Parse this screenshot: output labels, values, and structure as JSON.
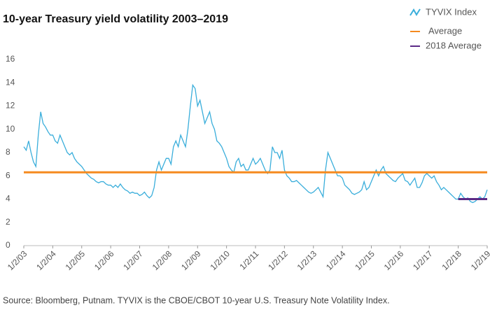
{
  "chart_data": {
    "type": "line",
    "title": "10-year Treasury yield volatility 2003–2019",
    "source": "Source: Bloomberg, Putnam. TYVIX is the CBOE/CBOT 10-year U.S. Treasury Note Volatility Index.",
    "xlim": [
      "2003-01",
      "2019-01"
    ],
    "xticks": [
      {
        "value": "2003-01",
        "label": "1/2/03"
      },
      {
        "value": "2004-01",
        "label": "1/2/04"
      },
      {
        "value": "2005-01",
        "label": "1/2/05"
      },
      {
        "value": "2006-01",
        "label": "1/2/06"
      },
      {
        "value": "2007-01",
        "label": "1/2/07"
      },
      {
        "value": "2008-01",
        "label": "1/2/08"
      },
      {
        "value": "2009-01",
        "label": "1/2/09"
      },
      {
        "value": "2010-01",
        "label": "1/2/10"
      },
      {
        "value": "2011-01",
        "label": "1/2/11"
      },
      {
        "value": "2012-01",
        "label": "1/2/12"
      },
      {
        "value": "2013-01",
        "label": "1/2/13"
      },
      {
        "value": "2014-01",
        "label": "1/2/14"
      },
      {
        "value": "2015-01",
        "label": "1/2/15"
      },
      {
        "value": "2016-01",
        "label": "1/2/16"
      },
      {
        "value": "2017-01",
        "label": "1/2/17"
      },
      {
        "value": "2018-01",
        "label": "1/2/18"
      },
      {
        "value": "2019-01",
        "label": "1/2/19"
      }
    ],
    "ylim": [
      0,
      16
    ],
    "yticks": [
      0,
      2,
      4,
      6,
      8,
      10,
      12,
      14,
      16
    ],
    "grid": false,
    "legend": "top-right",
    "series": [
      {
        "name": "TYVIX Index",
        "color": "#3aaedb",
        "x": [
          "2003-01",
          "2003-02",
          "2003-03",
          "2003-04",
          "2003-05",
          "2003-06",
          "2003-07",
          "2003-08",
          "2003-09",
          "2003-10",
          "2003-11",
          "2003-12",
          "2004-01",
          "2004-02",
          "2004-03",
          "2004-04",
          "2004-05",
          "2004-06",
          "2004-07",
          "2004-08",
          "2004-09",
          "2004-10",
          "2004-11",
          "2004-12",
          "2005-01",
          "2005-02",
          "2005-03",
          "2005-04",
          "2005-05",
          "2005-06",
          "2005-07",
          "2005-08",
          "2005-09",
          "2005-10",
          "2005-11",
          "2005-12",
          "2006-01",
          "2006-02",
          "2006-03",
          "2006-04",
          "2006-05",
          "2006-06",
          "2006-07",
          "2006-08",
          "2006-09",
          "2006-10",
          "2006-11",
          "2006-12",
          "2007-01",
          "2007-02",
          "2007-03",
          "2007-04",
          "2007-05",
          "2007-06",
          "2007-07",
          "2007-08",
          "2007-09",
          "2007-10",
          "2007-11",
          "2007-12",
          "2008-01",
          "2008-02",
          "2008-03",
          "2008-04",
          "2008-05",
          "2008-06",
          "2008-07",
          "2008-08",
          "2008-09",
          "2008-10",
          "2008-11",
          "2008-12",
          "2009-01",
          "2009-02",
          "2009-03",
          "2009-04",
          "2009-05",
          "2009-06",
          "2009-07",
          "2009-08",
          "2009-09",
          "2009-10",
          "2009-11",
          "2009-12",
          "2010-01",
          "2010-02",
          "2010-03",
          "2010-04",
          "2010-05",
          "2010-06",
          "2010-07",
          "2010-08",
          "2010-09",
          "2010-10",
          "2010-11",
          "2010-12",
          "2011-01",
          "2011-02",
          "2011-03",
          "2011-04",
          "2011-05",
          "2011-06",
          "2011-07",
          "2011-08",
          "2011-09",
          "2011-10",
          "2011-11",
          "2011-12",
          "2012-01",
          "2012-02",
          "2012-03",
          "2012-04",
          "2012-05",
          "2012-06",
          "2012-07",
          "2012-08",
          "2012-09",
          "2012-10",
          "2012-11",
          "2012-12",
          "2013-01",
          "2013-02",
          "2013-03",
          "2013-04",
          "2013-05",
          "2013-06",
          "2013-07",
          "2013-08",
          "2013-09",
          "2013-10",
          "2013-11",
          "2013-12",
          "2014-01",
          "2014-02",
          "2014-03",
          "2014-04",
          "2014-05",
          "2014-06",
          "2014-07",
          "2014-08",
          "2014-09",
          "2014-10",
          "2014-11",
          "2014-12",
          "2015-01",
          "2015-02",
          "2015-03",
          "2015-04",
          "2015-05",
          "2015-06",
          "2015-07",
          "2015-08",
          "2015-09",
          "2015-10",
          "2015-11",
          "2015-12",
          "2016-01",
          "2016-02",
          "2016-03",
          "2016-04",
          "2016-05",
          "2016-06",
          "2016-07",
          "2016-08",
          "2016-09",
          "2016-10",
          "2016-11",
          "2016-12",
          "2017-01",
          "2017-02",
          "2017-03",
          "2017-04",
          "2017-05",
          "2017-06",
          "2017-07",
          "2017-08",
          "2017-09",
          "2017-10",
          "2017-11",
          "2017-12",
          "2018-01",
          "2018-02",
          "2018-03",
          "2018-04",
          "2018-05",
          "2018-06",
          "2018-07",
          "2018-08",
          "2018-09",
          "2018-10",
          "2018-11",
          "2018-12",
          "2019-01"
        ],
        "values": [
          8.5,
          8.2,
          9.0,
          8.0,
          7.2,
          6.8,
          9.5,
          11.5,
          10.5,
          10.2,
          9.8,
          9.5,
          9.5,
          9.0,
          8.8,
          9.5,
          9.0,
          8.5,
          8.0,
          7.8,
          8.0,
          7.5,
          7.2,
          7.0,
          6.8,
          6.5,
          6.2,
          6.0,
          5.8,
          5.7,
          5.5,
          5.4,
          5.5,
          5.5,
          5.3,
          5.2,
          5.2,
          5.0,
          5.2,
          5.0,
          5.3,
          5.0,
          4.8,
          4.7,
          4.5,
          4.6,
          4.5,
          4.5,
          4.3,
          4.4,
          4.6,
          4.3,
          4.1,
          4.3,
          5.0,
          6.5,
          7.2,
          6.5,
          7.0,
          7.5,
          7.5,
          7.0,
          8.5,
          9.0,
          8.5,
          9.5,
          9.0,
          8.5,
          10.0,
          12.0,
          13.8,
          13.5,
          12.0,
          12.5,
          11.5,
          10.5,
          11.0,
          11.5,
          10.5,
          10.0,
          9.0,
          8.8,
          8.5,
          8.0,
          7.5,
          6.8,
          6.5,
          6.3,
          7.2,
          7.5,
          6.8,
          7.0,
          6.5,
          6.5,
          7.0,
          7.5,
          7.0,
          7.2,
          7.5,
          7.0,
          6.5,
          6.2,
          6.5,
          8.5,
          8.0,
          8.0,
          7.5,
          8.2,
          6.5,
          6.0,
          5.8,
          5.5,
          5.5,
          5.6,
          5.4,
          5.2,
          5.0,
          4.8,
          4.6,
          4.5,
          4.6,
          4.8,
          5.0,
          4.6,
          4.2,
          6.5,
          8.0,
          7.5,
          7.0,
          6.5,
          6.0,
          6.0,
          5.8,
          5.2,
          5.0,
          4.8,
          4.5,
          4.4,
          4.5,
          4.6,
          4.8,
          5.5,
          4.8,
          5.0,
          5.5,
          6.0,
          6.5,
          6.0,
          6.5,
          6.8,
          6.2,
          6.0,
          5.8,
          5.6,
          5.5,
          5.8,
          6.0,
          6.2,
          5.6,
          5.5,
          5.2,
          5.5,
          5.8,
          5.0,
          5.0,
          5.4,
          6.0,
          6.2,
          6.0,
          5.8,
          6.0,
          5.5,
          5.2,
          4.8,
          5.0,
          4.8,
          4.6,
          4.4,
          4.2,
          4.0,
          4.0,
          4.5,
          4.2,
          4.0,
          4.1,
          3.8,
          3.7,
          3.8,
          4.0,
          4.2,
          4.0,
          4.2,
          4.8
        ]
      },
      {
        "name": "Average",
        "color": "#f58a1f",
        "x": [
          "2003-01",
          "2019-01"
        ],
        "values": [
          6.3,
          6.3
        ]
      },
      {
        "name": "2018 Average",
        "color": "#5b2a86",
        "x": [
          "2018-01",
          "2019-01"
        ],
        "values": [
          4.0,
          4.0
        ]
      }
    ]
  }
}
